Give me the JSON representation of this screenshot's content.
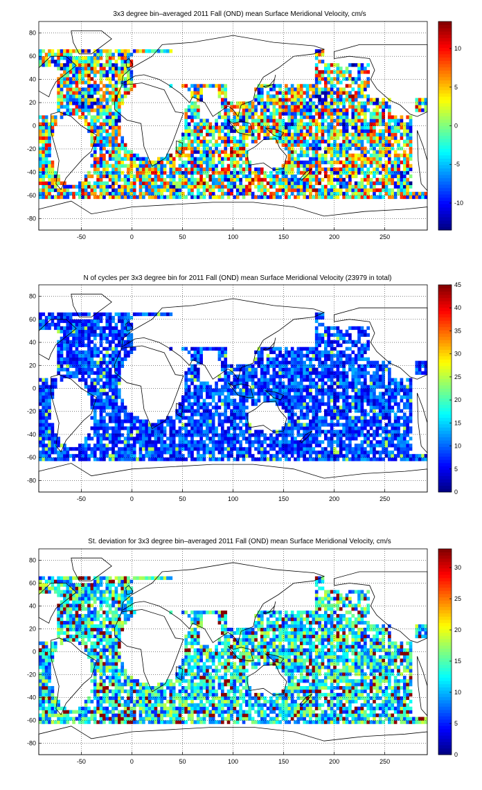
{
  "colors": {
    "background": "#ffffff",
    "axes": "#000000",
    "grid": "#000000",
    "colormap": "jet"
  },
  "chart_data": [
    {
      "type": "heatmap",
      "title": "3x3 degree bin–averaged 2011 Fall (OND) mean Surface Meridional Velocity, cm/s",
      "xlim": [
        -92,
        292
      ],
      "ylim": [
        -90,
        90
      ],
      "xticks": [
        -50,
        0,
        50,
        100,
        150,
        200,
        250
      ],
      "yticks": [
        -80,
        -60,
        -40,
        -20,
        0,
        20,
        40,
        60,
        80
      ],
      "grid": true,
      "bin_size_deg": 3,
      "colorbar": {
        "range": [
          -13.5,
          13.5
        ],
        "ticks": [
          -10,
          -5,
          0,
          5,
          10
        ],
        "position": "right"
      },
      "field": "meridional_velocity_mean"
    },
    {
      "type": "heatmap",
      "title": "N of cycles per 3x3 degree bin for 2011 Fall (OND) mean Surface Meridional Velocity (23979 in total)",
      "xlim": [
        -92,
        292
      ],
      "ylim": [
        -90,
        90
      ],
      "xticks": [
        -50,
        0,
        50,
        100,
        150,
        200,
        250
      ],
      "yticks": [
        -80,
        -60,
        -40,
        -20,
        0,
        20,
        40,
        60,
        80
      ],
      "grid": true,
      "bin_size_deg": 3,
      "total_cycles": 23979,
      "colorbar": {
        "range": [
          0,
          45
        ],
        "ticks": [
          0,
          5,
          10,
          15,
          20,
          25,
          30,
          35,
          40,
          45
        ],
        "position": "right"
      },
      "field": "cycle_count"
    },
    {
      "type": "heatmap",
      "title": "St. deviation for 3x3 degree bin–averaged 2011 Fall (OND) mean Surface Meridional Velocity, cm/s",
      "xlim": [
        -92,
        292
      ],
      "ylim": [
        -90,
        90
      ],
      "xticks": [
        -50,
        0,
        50,
        100,
        150,
        200,
        250
      ],
      "yticks": [
        -80,
        -60,
        -40,
        -20,
        0,
        20,
        40,
        60,
        80
      ],
      "grid": true,
      "bin_size_deg": 3,
      "colorbar": {
        "range": [
          0,
          33
        ],
        "ticks": [
          0,
          5,
          10,
          15,
          20,
          25,
          30
        ],
        "position": "right"
      },
      "field": "meridional_velocity_std"
    }
  ]
}
